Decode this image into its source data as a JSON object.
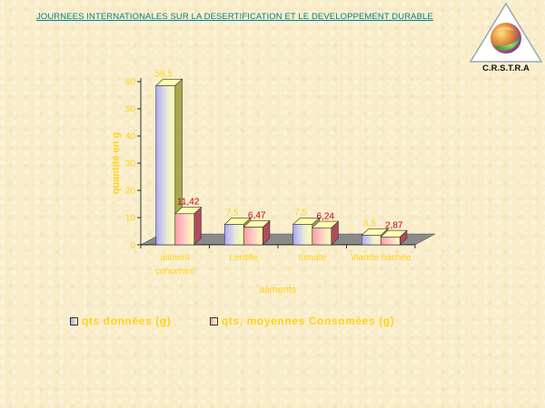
{
  "header": {
    "title": "JOURNEES INTERNATIONALES  SUR LA DESERTIFICATION  ET LE DEVELOPPEMENT DURABLE"
  },
  "logo": {
    "text": "C.R.S.T.R.A",
    "icon": "crstra-logo-icon"
  },
  "colors": {
    "series1_front": "#b0b0ff",
    "series1_light": "#ffffb0",
    "series1_side": "#a8a850",
    "series2_front": "#ff9eae",
    "series2_light": "#ffffb0",
    "series2_side": "#b04c5c",
    "floor": "#8a8a8a",
    "axis_text": "#ffd21a",
    "label_series2": "#c00000"
  },
  "chart_data": {
    "type": "bar",
    "style": "3d-clustered",
    "categories": [
      "aliment concentré",
      "Lentille",
      "tomate",
      "Viande hachée"
    ],
    "category_lines": [
      [
        "aliment",
        "concentré"
      ],
      [
        "Lentille"
      ],
      [
        "tomate"
      ],
      [
        "Viande hachée"
      ]
    ],
    "series": [
      {
        "name": "qts données (g)",
        "values": [
          58.5,
          7.5,
          7.5,
          3.5
        ],
        "labels": [
          "58,5",
          "7,5",
          "7,5",
          "3,5"
        ]
      },
      {
        "name": "qts, moyennes Consomées (g)",
        "values": [
          11.42,
          6.47,
          6.24,
          2.87
        ],
        "labels": [
          "11,42",
          "6,47",
          "6,24",
          "2,87"
        ]
      }
    ],
    "xlabel": "aliments",
    "ylabel": "quantité en g",
    "ylim": [
      0,
      60
    ],
    "yticks": [
      0,
      10,
      20,
      30,
      40,
      50,
      60
    ],
    "legend_position": "bottom",
    "grid": false
  }
}
